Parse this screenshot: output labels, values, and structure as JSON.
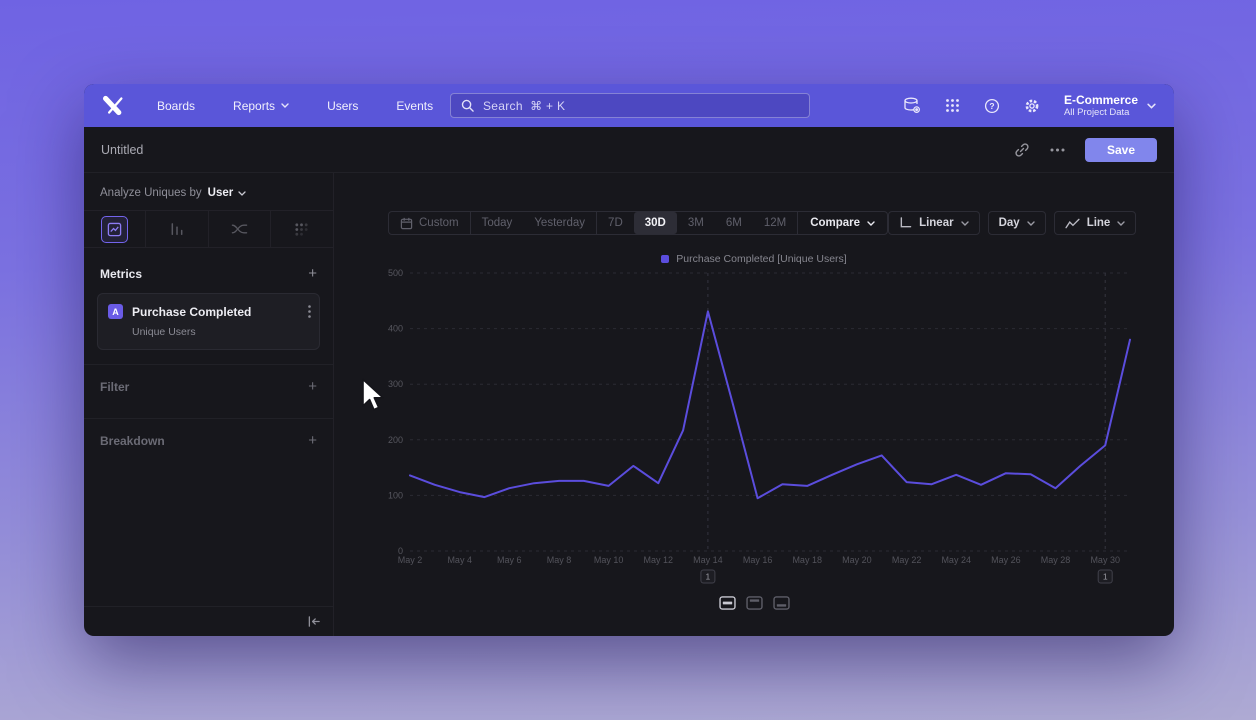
{
  "colors": {
    "nav_bg": "#5a56d9",
    "accent": "#6a5be6",
    "save_button": "#8186ec",
    "chart_line": "#5b4ddd",
    "window_bg": "#17171c"
  },
  "nav": {
    "items": [
      {
        "label": "Boards",
        "has_menu": false
      },
      {
        "label": "Reports",
        "has_menu": true
      },
      {
        "label": "Users",
        "has_menu": false
      },
      {
        "label": "Events",
        "has_menu": false
      }
    ],
    "search_placeholder": "Search  ⌘ + K",
    "project_name": "E-Commerce",
    "project_scope": "All Project Data"
  },
  "header": {
    "title": "Untitled",
    "save_label": "Save"
  },
  "sidebar": {
    "analyze_label": "Analyze Uniques by",
    "analyze_value": "User",
    "metrics_label": "Metrics",
    "filter_label": "Filter",
    "breakdown_label": "Breakdown",
    "metric_card": {
      "badge": "A",
      "title": "Purchase Completed",
      "subtitle": "Unique Users"
    }
  },
  "toolbar": {
    "ranges": [
      "Custom",
      "Today",
      "Yesterday",
      "7D",
      "30D",
      "3M",
      "6M",
      "12M"
    ],
    "selected_range": "30D",
    "compare_label": "Compare",
    "scale": "Linear",
    "interval": "Day",
    "chart_type": "Line"
  },
  "chart_data": {
    "type": "line",
    "title": "",
    "legend": [
      "Purchase Completed [Unique Users]"
    ],
    "legend_position": "top",
    "grid": true,
    "ylim": [
      0,
      500
    ],
    "yticks": [
      0,
      100,
      200,
      300,
      400,
      500
    ],
    "xtick_every": 2,
    "x": [
      "May 2",
      "May 3",
      "May 4",
      "May 5",
      "May 6",
      "May 7",
      "May 8",
      "May 9",
      "May 10",
      "May 11",
      "May 12",
      "May 13",
      "May 14",
      "May 15",
      "May 16",
      "May 17",
      "May 18",
      "May 19",
      "May 20",
      "May 21",
      "May 22",
      "May 23",
      "May 24",
      "May 25",
      "May 26",
      "May 27",
      "May 28",
      "May 29",
      "May 30",
      "May 31"
    ],
    "series": [
      {
        "name": "Purchase Completed [Unique Users]",
        "color": "#5b4ddd",
        "values": [
          136,
          119,
          106,
          97,
          113,
          122,
          126,
          126,
          117,
          153,
          122,
          217,
          431,
          265,
          95,
          120,
          117,
          137,
          156,
          172,
          124,
          120,
          137,
          119,
          140,
          138,
          113,
          153,
          190,
          380
        ]
      }
    ],
    "annotations": [
      {
        "label": "1",
        "x": "May 14"
      },
      {
        "label": "1",
        "x": "May 30"
      }
    ]
  }
}
